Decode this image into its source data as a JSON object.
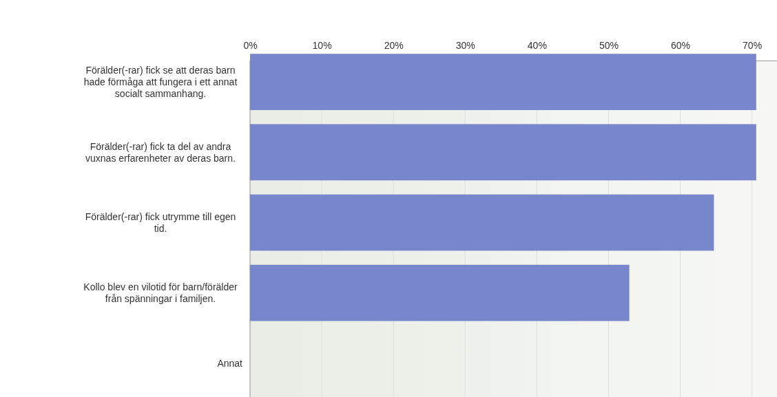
{
  "chart_data": {
    "type": "bar",
    "orientation": "horizontal",
    "categories": [
      "Förälder(-rar) fick se att deras barn hade förmåga att fungera i ett annat socialt sammanhang.",
      "Förälder(-rar) fick ta del av andra vuxnas erfarenheter av deras barn.",
      "Förälder(-rar) fick utrymme till egen tid.",
      "Kollo blev en vilotid för barn/förälder från spänningar i familjen.",
      "Annat"
    ],
    "values": [
      70.6,
      70.6,
      64.7,
      52.9,
      0
    ],
    "color": "#7886cc",
    "xlim": [
      0,
      73.5
    ],
    "xticks": [
      {
        "value": 0,
        "label": "0%"
      },
      {
        "value": 10,
        "label": "10%"
      },
      {
        "value": 20,
        "label": "20%"
      },
      {
        "value": 30,
        "label": "30%"
      },
      {
        "value": 40,
        "label": "40%"
      },
      {
        "value": 50,
        "label": "50%"
      },
      {
        "value": 60,
        "label": "60%"
      },
      {
        "value": 70,
        "label": "70%"
      }
    ],
    "grid": "x"
  }
}
